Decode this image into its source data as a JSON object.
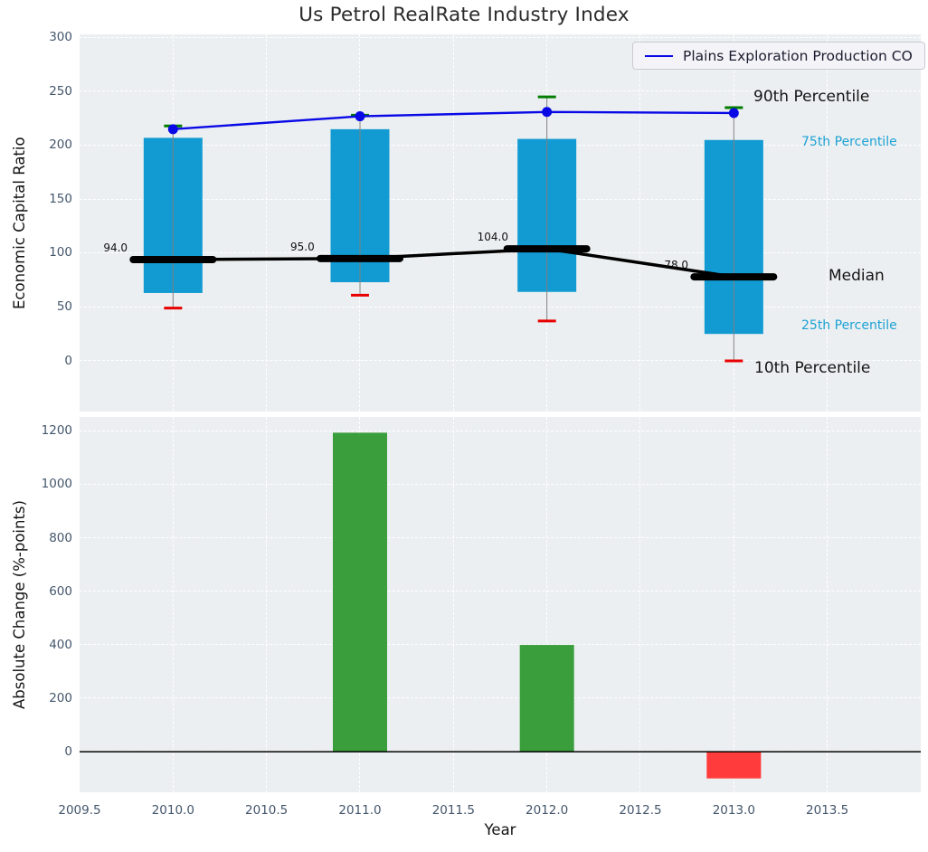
{
  "title": "Us Petrol RealRate Industry Index",
  "legend": {
    "label": "Plains Exploration Production CO"
  },
  "annotations": {
    "p90": "90th Percentile",
    "p75": "75th Percentile",
    "median": "Median",
    "p25": "25th Percentile",
    "p10": "10th Percentile"
  },
  "colors": {
    "company_line": "#0909e6",
    "box_fill": "#129bd2",
    "percentile_text": "#1ba2d4",
    "p90_dash": "#007d00",
    "p10_dash": "#e80000",
    "median_line": "#000000",
    "whisker": "#808080",
    "bar_positive": "#3a9e3c",
    "bar_negative": "#ff3b3b",
    "grid": "#ffffff",
    "plot_bg": "#eceff1",
    "tick_label": "#44566b"
  },
  "chart_data": [
    {
      "type": "box",
      "ylabel": "Economic Capital Ratio",
      "x": [
        2010,
        2011,
        2012,
        2013
      ],
      "percentiles": {
        "p10": [
          49,
          61,
          37,
          0
        ],
        "p25": [
          63,
          73,
          64,
          25
        ],
        "median": [
          94,
          95,
          104,
          78
        ],
        "p75": [
          207,
          215,
          206,
          205
        ],
        "p90": [
          218,
          228,
          245,
          235
        ]
      },
      "median_labels": [
        "94.0",
        "95.0",
        "104.0",
        "78.0"
      ],
      "series": [
        {
          "name": "Plains Exploration Production CO",
          "values": [
            215,
            227,
            231,
            230
          ]
        }
      ],
      "ylim": [
        -47,
        303
      ],
      "yticks": [
        0,
        50,
        100,
        150,
        200,
        250,
        300
      ],
      "xlim": [
        2009.5,
        2014.0
      ],
      "grid": true,
      "legend_position": "upper right"
    },
    {
      "type": "bar",
      "ylabel": "Absolute Change (%-points)",
      "xlabel": "Year",
      "x": [
        2011,
        2012,
        2013
      ],
      "values": [
        1195,
        400,
        -100
      ],
      "bar_colors": [
        "positive",
        "positive",
        "negative"
      ],
      "ylim": [
        -152,
        1254
      ],
      "yticks": [
        0,
        200,
        400,
        600,
        800,
        1000,
        1200
      ],
      "xlim": [
        2009.5,
        2014.0
      ],
      "xticks": [
        2009.5,
        2010.0,
        2010.5,
        2011.0,
        2011.5,
        2012.0,
        2012.5,
        2013.0,
        2013.5
      ],
      "xtick_labels": [
        "2009.5",
        "2010.0",
        "2010.5",
        "2011.0",
        "2011.5",
        "2012.0",
        "2012.5",
        "2013.0",
        "2013.5"
      ],
      "grid": true
    }
  ]
}
